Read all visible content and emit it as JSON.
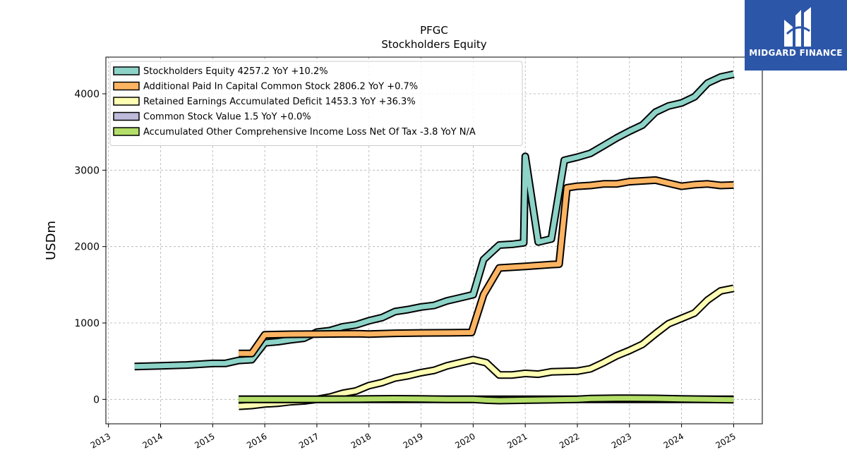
{
  "brand": {
    "name": "MIDGARD FINANCE",
    "bg": "#2c56a8"
  },
  "chart_data": {
    "type": "line",
    "title": [
      "PFGC",
      "Stockholders  Equity"
    ],
    "ylabel": "USDm",
    "xlim": [
      2012.95,
      2025.55
    ],
    "ylim": [
      -320,
      4480
    ],
    "x_ticks": [
      2013,
      2014,
      2015,
      2016,
      2017,
      2018,
      2019,
      2020,
      2021,
      2022,
      2023,
      2024,
      2025
    ],
    "y_ticks": [
      0,
      1000,
      2000,
      3000,
      4000
    ],
    "grid": true,
    "legend_position": "top-left",
    "series": [
      {
        "name": "Stockholders Equity  4257.2 YoY +10.2%",
        "color": "#8dd3c7",
        "points": [
          [
            2013.5,
            430
          ],
          [
            2014.0,
            440
          ],
          [
            2014.5,
            450
          ],
          [
            2015.0,
            470
          ],
          [
            2015.25,
            472
          ],
          [
            2015.5,
            510
          ],
          [
            2015.75,
            520
          ],
          [
            2016.0,
            740
          ],
          [
            2016.25,
            755
          ],
          [
            2016.5,
            780
          ],
          [
            2016.75,
            800
          ],
          [
            2017.0,
            880
          ],
          [
            2017.25,
            900
          ],
          [
            2017.5,
            950
          ],
          [
            2017.75,
            975
          ],
          [
            2018.0,
            1030
          ],
          [
            2018.25,
            1070
          ],
          [
            2018.5,
            1150
          ],
          [
            2018.75,
            1175
          ],
          [
            2019.0,
            1210
          ],
          [
            2019.25,
            1230
          ],
          [
            2019.5,
            1290
          ],
          [
            2019.75,
            1330
          ],
          [
            2020.0,
            1370
          ],
          [
            2020.2,
            1830
          ],
          [
            2020.5,
            2020
          ],
          [
            2020.75,
            2030
          ],
          [
            2020.97,
            2050
          ],
          [
            2021.0,
            3180
          ],
          [
            2021.25,
            2060
          ],
          [
            2021.5,
            2100
          ],
          [
            2021.75,
            3130
          ],
          [
            2022.0,
            3170
          ],
          [
            2022.25,
            3220
          ],
          [
            2022.5,
            3320
          ],
          [
            2022.75,
            3420
          ],
          [
            2023.0,
            3510
          ],
          [
            2023.25,
            3590
          ],
          [
            2023.5,
            3760
          ],
          [
            2023.75,
            3840
          ],
          [
            2024.0,
            3880
          ],
          [
            2024.25,
            3960
          ],
          [
            2024.5,
            4140
          ],
          [
            2024.75,
            4220
          ],
          [
            2025.0,
            4257
          ]
        ]
      },
      {
        "name": "Additional Paid In Capital Common Stock  2806.2 YoY +0.7%",
        "color": "#fdb462",
        "points": [
          [
            2015.5,
            600
          ],
          [
            2015.75,
            600
          ],
          [
            2016.0,
            845
          ],
          [
            2016.5,
            852
          ],
          [
            2017.0,
            855
          ],
          [
            2017.5,
            858
          ],
          [
            2017.75,
            860
          ],
          [
            2018.0,
            855
          ],
          [
            2018.5,
            865
          ],
          [
            2019.0,
            870
          ],
          [
            2019.5,
            872
          ],
          [
            2019.97,
            875
          ],
          [
            2020.2,
            1370
          ],
          [
            2020.5,
            1720
          ],
          [
            2020.75,
            1730
          ],
          [
            2021.0,
            1740
          ],
          [
            2021.5,
            1765
          ],
          [
            2021.65,
            1770
          ],
          [
            2021.8,
            2770
          ],
          [
            2022.0,
            2790
          ],
          [
            2022.25,
            2800
          ],
          [
            2022.5,
            2820
          ],
          [
            2022.75,
            2820
          ],
          [
            2023.0,
            2850
          ],
          [
            2023.5,
            2870
          ],
          [
            2023.75,
            2830
          ],
          [
            2024.0,
            2790
          ],
          [
            2024.25,
            2810
          ],
          [
            2024.5,
            2820
          ],
          [
            2024.75,
            2800
          ],
          [
            2025.0,
            2806
          ]
        ]
      },
      {
        "name": "Retained Earnings Accumulated Deficit  1453.3 YoY +36.3%",
        "color": "#ffffb3",
        "points": [
          [
            2015.5,
            -90
          ],
          [
            2015.75,
            -80
          ],
          [
            2016.0,
            -60
          ],
          [
            2016.25,
            -50
          ],
          [
            2016.5,
            -30
          ],
          [
            2016.75,
            -20
          ],
          [
            2017.0,
            0
          ],
          [
            2017.25,
            30
          ],
          [
            2017.5,
            80
          ],
          [
            2017.75,
            110
          ],
          [
            2018.0,
            180
          ],
          [
            2018.25,
            220
          ],
          [
            2018.5,
            280
          ],
          [
            2018.75,
            310
          ],
          [
            2019.0,
            350
          ],
          [
            2019.25,
            380
          ],
          [
            2019.5,
            440
          ],
          [
            2019.75,
            480
          ],
          [
            2020.0,
            520
          ],
          [
            2020.25,
            480
          ],
          [
            2020.5,
            320
          ],
          [
            2020.75,
            320
          ],
          [
            2021.0,
            340
          ],
          [
            2021.25,
            330
          ],
          [
            2021.5,
            360
          ],
          [
            2021.75,
            365
          ],
          [
            2022.0,
            370
          ],
          [
            2022.25,
            400
          ],
          [
            2022.5,
            480
          ],
          [
            2022.75,
            570
          ],
          [
            2023.0,
            640
          ],
          [
            2023.25,
            720
          ],
          [
            2023.5,
            860
          ],
          [
            2023.75,
            990
          ],
          [
            2024.0,
            1060
          ],
          [
            2024.25,
            1130
          ],
          [
            2024.5,
            1300
          ],
          [
            2024.75,
            1420
          ],
          [
            2025.0,
            1453
          ]
        ]
      },
      {
        "name": "Common Stock Value  1.5 YoY +0.0%",
        "color": "#bebada",
        "points": [
          [
            2015.5,
            1.5
          ],
          [
            2016.0,
            1.5
          ],
          [
            2017.0,
            1.5
          ],
          [
            2018.0,
            1.5
          ],
          [
            2019.0,
            1.5
          ],
          [
            2020.0,
            1.5
          ],
          [
            2021.0,
            1.5
          ],
          [
            2022.0,
            1.5
          ],
          [
            2023.0,
            1.5
          ],
          [
            2024.0,
            1.5
          ],
          [
            2025.0,
            1.5
          ]
        ]
      },
      {
        "name": "Accumulated Other Comprehensive Income Loss Net Of Tax  -3.8 YoY N/A",
        "color": "#b3de69",
        "points": [
          [
            2015.5,
            0
          ],
          [
            2016.0,
            0
          ],
          [
            2017.0,
            0
          ],
          [
            2017.75,
            3
          ],
          [
            2018.0,
            5
          ],
          [
            2018.5,
            8
          ],
          [
            2019.0,
            5
          ],
          [
            2019.5,
            0
          ],
          [
            2020.0,
            0
          ],
          [
            2020.25,
            -10
          ],
          [
            2020.5,
            -15
          ],
          [
            2021.0,
            -10
          ],
          [
            2021.5,
            -5
          ],
          [
            2022.0,
            0
          ],
          [
            2022.25,
            10
          ],
          [
            2022.75,
            15
          ],
          [
            2023.0,
            15
          ],
          [
            2023.5,
            12
          ],
          [
            2024.0,
            5
          ],
          [
            2024.5,
            0
          ],
          [
            2025.0,
            -3.8
          ]
        ]
      }
    ]
  }
}
